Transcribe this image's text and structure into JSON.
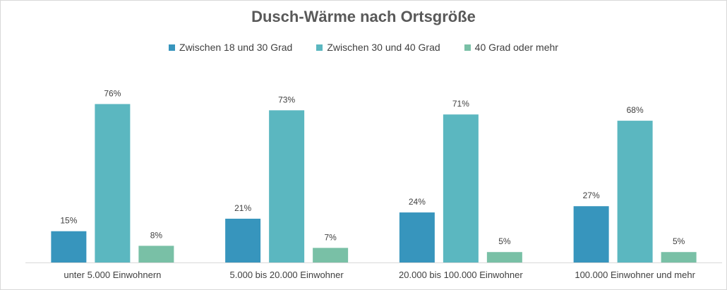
{
  "chart_data": {
    "type": "bar",
    "title": "Dusch-Wärme nach Ortsgröße",
    "categories": [
      "unter 5.000 Einwohnern",
      "5.000 bis 20.000 Einwohner",
      "20.000 bis 100.000 Einwohner",
      "100.000 Einwohner und mehr"
    ],
    "series": [
      {
        "name": "Zwischen 18 und 30 Grad",
        "color": "#3795bd",
        "values": [
          15,
          21,
          24,
          27
        ],
        "labels": [
          "15%",
          "21%",
          "24%",
          "27%"
        ]
      },
      {
        "name": "Zwischen 30 und 40 Grad",
        "color": "#5bb7c0",
        "values": [
          76,
          73,
          71,
          68
        ],
        "labels": [
          "76%",
          "73%",
          "71%",
          "68%"
        ]
      },
      {
        "name": "40 Grad oder mehr",
        "color": "#79c0a6",
        "values": [
          8,
          7,
          5,
          5
        ],
        "labels": [
          "8%",
          "7%",
          "5%",
          "5%"
        ]
      }
    ],
    "ylim": [
      0,
      88
    ],
    "legend_position": "top",
    "grid": false
  }
}
